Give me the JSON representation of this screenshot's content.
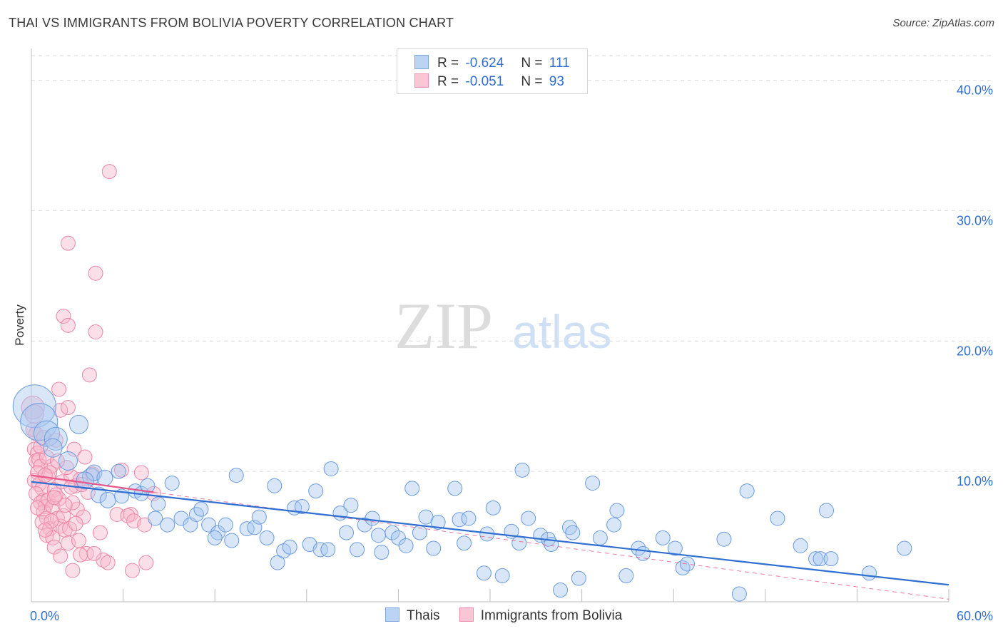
{
  "title": "THAI VS IMMIGRANTS FROM BOLIVIA POVERTY CORRELATION CHART",
  "source": "Source: ZipAtlas.com",
  "watermark": {
    "zip": "ZIP",
    "atlas": "atlas"
  },
  "legend": {
    "r_label": "R =",
    "n_label": "N =",
    "rows": [
      {
        "r": "-0.624",
        "n": "111"
      },
      {
        "r": "-0.051",
        "n": "93"
      }
    ]
  },
  "colors": {
    "thai_fill": "#a9c8f0",
    "thai_stroke": "#6a9be0",
    "thai_line": "#2f6fd1",
    "bol_fill": "#f7b8cb",
    "bol_stroke": "#ee86a6",
    "bol_line": "#e8578a",
    "grid": "#d9d9d9",
    "axis_text": "#2f6fd1"
  },
  "chart_data": {
    "type": "scatter",
    "title": "THAI VS IMMIGRANTS FROM BOLIVIA POVERTY CORRELATION CHART",
    "xlabel": "",
    "ylabel": "Poverty",
    "xlim": [
      0,
      60
    ],
    "ylim": [
      0,
      42
    ],
    "x_tick_labels": [
      "0.0%",
      "60.0%"
    ],
    "y_tick_labels": [
      "10.0%",
      "20.0%",
      "30.0%",
      "40.0%"
    ],
    "y_ticks": [
      10,
      20,
      30,
      40
    ],
    "series": [
      {
        "name": "Thais",
        "r": -0.624,
        "n": 111,
        "trend": {
          "x": [
            0,
            60
          ],
          "y": [
            9.2,
            1.3
          ]
        },
        "points": [
          [
            0.2,
            15.0,
            3
          ],
          [
            0.5,
            13.8,
            2.6
          ],
          [
            1.0,
            12.9,
            1.8
          ],
          [
            1.6,
            12.5,
            1.6
          ],
          [
            1.4,
            11.8,
            1.3
          ],
          [
            3.1,
            13.6,
            1.3
          ],
          [
            2.4,
            10.8,
            1.3
          ],
          [
            3.9,
            9.6,
            1.2
          ],
          [
            4.1,
            9.9,
            1.1
          ],
          [
            3.5,
            9.3,
            1.2
          ],
          [
            4.4,
            8.2,
            1.1
          ],
          [
            5.0,
            7.8,
            1.1
          ],
          [
            4.8,
            9.5,
            1.1
          ],
          [
            5.7,
            10.0,
            1.0
          ],
          [
            5.9,
            8.1,
            1.0
          ],
          [
            6.8,
            8.5,
            1.0
          ],
          [
            7.2,
            8.3,
            1.0
          ],
          [
            7.6,
            8.9,
            1.0
          ],
          [
            8.3,
            7.5,
            1.0
          ],
          [
            8.1,
            6.4,
            1.0
          ],
          [
            9.2,
            9.1,
            1.0
          ],
          [
            8.9,
            5.9,
            1.0
          ],
          [
            9.8,
            6.4,
            1.0
          ],
          [
            10.4,
            5.9,
            1.0
          ],
          [
            10.8,
            6.7,
            1.0
          ],
          [
            11.1,
            7.1,
            1.0
          ],
          [
            11.6,
            5.9,
            1.0
          ],
          [
            12.2,
            5.3,
            1.0
          ],
          [
            12.0,
            4.9,
            1.0
          ],
          [
            12.7,
            5.9,
            1.0
          ],
          [
            13.1,
            4.7,
            1.0
          ],
          [
            13.4,
            9.7,
            1.0
          ],
          [
            14.1,
            5.6,
            1.0
          ],
          [
            14.6,
            5.7,
            1.0
          ],
          [
            14.9,
            6.5,
            1.0
          ],
          [
            15.4,
            4.9,
            1.0
          ],
          [
            15.9,
            8.9,
            1.0
          ],
          [
            16.1,
            3.0,
            1.0
          ],
          [
            16.5,
            3.9,
            1.0
          ],
          [
            16.9,
            4.2,
            1.0
          ],
          [
            17.2,
            7.2,
            1.0
          ],
          [
            17.7,
            7.3,
            1.0
          ],
          [
            18.2,
            4.4,
            1.0
          ],
          [
            18.6,
            8.5,
            1.0
          ],
          [
            18.9,
            4.0,
            1.0
          ],
          [
            19.4,
            4.0,
            1.0
          ],
          [
            19.6,
            10.2,
            1.0
          ],
          [
            20.2,
            6.8,
            1.0
          ],
          [
            20.6,
            5.3,
            1.0
          ],
          [
            20.9,
            7.4,
            1.0
          ],
          [
            21.3,
            4.0,
            1.0
          ],
          [
            21.8,
            5.9,
            1.0
          ],
          [
            22.3,
            6.4,
            1.0
          ],
          [
            22.7,
            5.1,
            1.0
          ],
          [
            22.9,
            3.8,
            1.0
          ],
          [
            23.6,
            5.3,
            1.0
          ],
          [
            24.0,
            4.9,
            1.0
          ],
          [
            24.5,
            4.3,
            1.0
          ],
          [
            24.9,
            8.7,
            1.0
          ],
          [
            25.4,
            5.3,
            1.0
          ],
          [
            25.8,
            6.5,
            1.0
          ],
          [
            26.3,
            4.1,
            1.0
          ],
          [
            26.6,
            6.1,
            1.0
          ],
          [
            27.7,
            8.7,
            1.0
          ],
          [
            28.0,
            6.3,
            1.0
          ],
          [
            28.3,
            4.5,
            1.0
          ],
          [
            28.6,
            6.4,
            1.0
          ],
          [
            29.6,
            2.2,
            1.0
          ],
          [
            29.8,
            5.2,
            1.0
          ],
          [
            30.2,
            7.2,
            1.0
          ],
          [
            30.8,
            2.0,
            1.0
          ],
          [
            31.4,
            5.4,
            1.0
          ],
          [
            31.9,
            4.5,
            1.0
          ],
          [
            32.1,
            10.1,
            1.0
          ],
          [
            32.5,
            6.4,
            1.0
          ],
          [
            33.3,
            5.1,
            1.0
          ],
          [
            33.8,
            4.8,
            1.0
          ],
          [
            34.0,
            4.4,
            1.0
          ],
          [
            34.6,
            0.9,
            1.0
          ],
          [
            35.2,
            5.7,
            1.0
          ],
          [
            35.4,
            5.3,
            1.0
          ],
          [
            35.8,
            1.8,
            1.0
          ],
          [
            36.7,
            9.1,
            1.0
          ],
          [
            37.2,
            4.9,
            1.0
          ],
          [
            38.1,
            5.9,
            1.0
          ],
          [
            38.3,
            7.0,
            1.0
          ],
          [
            38.9,
            2.0,
            1.0
          ],
          [
            39.7,
            4.1,
            1.0
          ],
          [
            40.0,
            3.7,
            1.0
          ],
          [
            41.3,
            4.9,
            1.0
          ],
          [
            42.1,
            4.1,
            1.0
          ],
          [
            42.6,
            2.6,
            1.0
          ],
          [
            42.9,
            2.9,
            1.0
          ],
          [
            45.3,
            4.8,
            1.0
          ],
          [
            46.3,
            0.6,
            1.0
          ],
          [
            46.8,
            8.5,
            1.0
          ],
          [
            48.8,
            6.4,
            1.0
          ],
          [
            50.3,
            4.3,
            1.0
          ],
          [
            51.3,
            3.3,
            1.0
          ],
          [
            51.6,
            3.3,
            1.0
          ],
          [
            52.0,
            7.0,
            1.0
          ],
          [
            52.3,
            3.3,
            1.0
          ],
          [
            54.8,
            2.2,
            1.0
          ],
          [
            57.1,
            4.1,
            1.0
          ]
        ]
      },
      {
        "name": "Immigrants from Bolivia",
        "r": -0.051,
        "n": 93,
        "trend": {
          "x": [
            0,
            8
          ],
          "y": [
            9.7,
            8.4
          ]
        },
        "trend_extension": {
          "x": [
            8,
            60
          ],
          "y": [
            8.4,
            0.2
          ]
        },
        "points": [
          [
            0.1,
            14.9,
            1.6
          ],
          [
            0.2,
            14.4,
            1.3
          ],
          [
            0.1,
            13.2,
            1.0
          ],
          [
            0.3,
            12.9,
            1.0
          ],
          [
            0.2,
            11.7,
            1.0
          ],
          [
            0.4,
            11.4,
            1.0
          ],
          [
            0.3,
            10.8,
            1.0
          ],
          [
            0.5,
            10.9,
            1.0
          ],
          [
            0.6,
            10.4,
            1.0
          ],
          [
            0.4,
            9.9,
            1.0
          ],
          [
            0.2,
            9.3,
            1.0
          ],
          [
            0.5,
            9.0,
            1.0
          ],
          [
            0.7,
            8.7,
            1.0
          ],
          [
            0.3,
            8.3,
            1.0
          ],
          [
            0.8,
            7.8,
            1.0
          ],
          [
            0.6,
            7.6,
            1.0
          ],
          [
            0.9,
            7.3,
            1.0
          ],
          [
            1.1,
            7.8,
            1.0
          ],
          [
            0.8,
            6.9,
            1.0
          ],
          [
            1.0,
            6.4,
            1.0
          ],
          [
            0.7,
            6.1,
            1.0
          ],
          [
            1.2,
            5.6,
            1.0
          ],
          [
            1.0,
            5.1,
            1.0
          ],
          [
            1.4,
            4.9,
            1.0
          ],
          [
            1.5,
            4.2,
            1.0
          ],
          [
            1.1,
            9.6,
            1.0
          ],
          [
            1.3,
            10.4,
            1.0
          ],
          [
            1.0,
            11.1,
            1.0
          ],
          [
            1.6,
            12.4,
            1.0
          ],
          [
            1.2,
            9.9,
            1.0
          ],
          [
            1.5,
            8.6,
            1.0
          ],
          [
            1.4,
            7.3,
            1.0
          ],
          [
            1.7,
            6.4,
            1.0
          ],
          [
            1.9,
            5.8,
            1.0
          ],
          [
            1.8,
            7.9,
            1.0
          ],
          [
            2.0,
            9.2,
            1.0
          ],
          [
            2.1,
            6.6,
            1.0
          ],
          [
            2.2,
            5.5,
            1.0
          ],
          [
            2.4,
            4.5,
            1.0
          ],
          [
            1.9,
            3.5,
            1.0
          ],
          [
            1.8,
            16.3,
            1.0
          ],
          [
            1.9,
            14.7,
            1.0
          ],
          [
            2.4,
            14.9,
            1.0
          ],
          [
            2.1,
            21.9,
            1.0
          ],
          [
            2.4,
            21.2,
            1.0
          ],
          [
            2.4,
            27.5,
            1.0
          ],
          [
            2.6,
            9.6,
            1.0
          ],
          [
            2.8,
            11.7,
            1.0
          ],
          [
            2.9,
            8.9,
            1.0
          ],
          [
            3.2,
            9.4,
            1.0
          ],
          [
            3.0,
            7.1,
            1.0
          ],
          [
            2.5,
            5.6,
            1.0
          ],
          [
            3.1,
            4.7,
            1.0
          ],
          [
            3.4,
            6.5,
            1.0
          ],
          [
            3.6,
            3.7,
            1.0
          ],
          [
            3.2,
            3.6,
            1.0
          ],
          [
            2.7,
            2.4,
            1.0
          ],
          [
            3.5,
            11.1,
            1.0
          ],
          [
            3.8,
            17.4,
            1.0
          ],
          [
            4.0,
            9.8,
            1.0
          ],
          [
            4.2,
            20.7,
            1.0
          ],
          [
            4.2,
            25.2,
            1.0
          ],
          [
            4.5,
            5.3,
            1.0
          ],
          [
            4.7,
            3.2,
            1.0
          ],
          [
            4.1,
            3.7,
            1.0
          ],
          [
            5.1,
            33.0,
            1.0
          ],
          [
            5.0,
            3.0,
            1.0
          ],
          [
            5.6,
            6.7,
            1.0
          ],
          [
            5.9,
            10.1,
            1.0
          ],
          [
            6.5,
            6.7,
            1.0
          ],
          [
            6.3,
            6.6,
            1.0
          ],
          [
            6.7,
            6.2,
            1.0
          ],
          [
            6.6,
            2.4,
            1.0
          ],
          [
            7.2,
            9.9,
            1.0
          ],
          [
            7.4,
            5.9,
            1.0
          ],
          [
            7.5,
            3.0,
            1.0
          ],
          [
            8.0,
            8.3,
            1.0
          ],
          [
            2.7,
            7.6,
            1.0
          ],
          [
            1.6,
            8.2,
            1.0
          ],
          [
            0.9,
            9.7,
            1.0
          ],
          [
            1.3,
            6.2,
            1.0
          ],
          [
            0.6,
            11.9,
            1.0
          ],
          [
            2.3,
            10.3,
            1.0
          ],
          [
            3.7,
            8.4,
            1.0
          ],
          [
            0.4,
            7.2,
            1.0
          ],
          [
            1.7,
            10.8,
            1.0
          ],
          [
            2.9,
            6.0,
            1.0
          ],
          [
            0.8,
            12.6,
            1.0
          ],
          [
            1.5,
            8.0,
            1.0
          ],
          [
            2.6,
            8.8,
            1.0
          ],
          [
            3.3,
            9.0,
            1.0
          ],
          [
            0.9,
            5.5,
            1.0
          ],
          [
            2.2,
            7.4,
            1.0
          ]
        ]
      }
    ]
  },
  "bottom_legend": [
    "Thais",
    "Immigrants from Bolivia"
  ]
}
